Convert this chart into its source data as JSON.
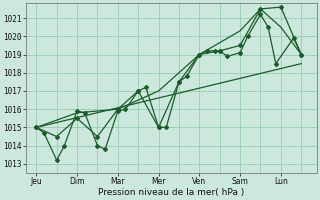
{
  "title": "Pression niveau de la mer( hPa )",
  "background_color": "#cce8dc",
  "grid_color": "#99ccb3",
  "line_color": "#1a5c2a",
  "ylim": [
    1012.5,
    1021.8
  ],
  "yticks": [
    1013,
    1014,
    1015,
    1016,
    1017,
    1018,
    1019,
    1020,
    1021
  ],
  "days": [
    "Jeu",
    "Dim",
    "Mar",
    "Mer",
    "Ven",
    "Sam",
    "Lun"
  ],
  "day_x": [
    0,
    16,
    32,
    48,
    64,
    80,
    96
  ],
  "xlim": [
    -4,
    110
  ],
  "series1": {
    "x": [
      0,
      3,
      8,
      11,
      16,
      19,
      24,
      27,
      32,
      35,
      40,
      43,
      48,
      51,
      56,
      59,
      64,
      67,
      70,
      72,
      75,
      80,
      83,
      88,
      91,
      94,
      101,
      104
    ],
    "y": [
      1015.0,
      1014.7,
      1013.2,
      1014.0,
      1015.9,
      1015.8,
      1014.0,
      1013.8,
      1015.9,
      1016.0,
      1017.0,
      1017.2,
      1015.0,
      1015.0,
      1017.5,
      1017.8,
      1019.0,
      1019.2,
      1019.2,
      1019.2,
      1018.9,
      1019.1,
      1020.0,
      1021.2,
      1020.5,
      1018.5,
      1019.9,
      1019.0
    ]
  },
  "series2": {
    "x": [
      0,
      8,
      16,
      24,
      32,
      40,
      48,
      56,
      64,
      72,
      80,
      88,
      96,
      104
    ],
    "y": [
      1015.0,
      1014.5,
      1015.5,
      1014.5,
      1016.0,
      1017.0,
      1015.0,
      1017.5,
      1019.0,
      1019.2,
      1019.5,
      1021.5,
      1021.6,
      1019.0
    ]
  },
  "series3": {
    "x": [
      0,
      16,
      32,
      48,
      64,
      80,
      88,
      96,
      104
    ],
    "y": [
      1015.0,
      1015.8,
      1016.0,
      1017.0,
      1019.0,
      1020.3,
      1021.5,
      1020.5,
      1019.0
    ]
  },
  "series4": {
    "x": [
      0,
      104
    ],
    "y": [
      1015.0,
      1018.5
    ]
  }
}
